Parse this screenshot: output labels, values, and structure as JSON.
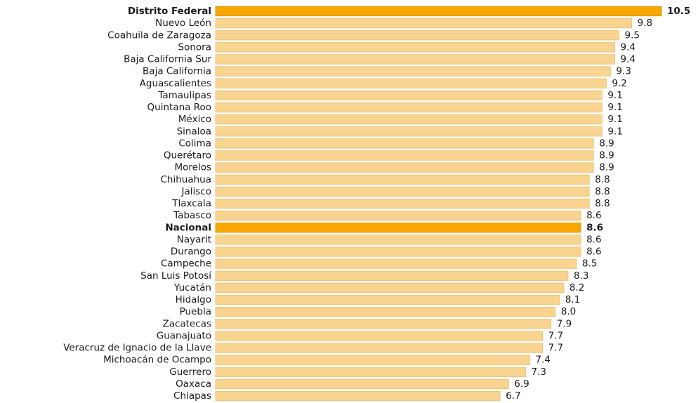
{
  "chart_data": {
    "type": "bar",
    "orientation": "horizontal",
    "categories": [
      "Distrito Federal",
      "Nuevo León",
      "Coahuila de Zaragoza",
      "Sonora",
      "Baja California Sur",
      "Baja California",
      "Aguascalientes",
      "Tamaulipas",
      "Quintana Roo",
      "México",
      "Sinaloa",
      "Colima",
      "Querétaro",
      "Morelos",
      "Chihuahua",
      "Jalisco",
      "Tlaxcala",
      "Tabasco",
      "Nacional",
      "Nayarit",
      "Durango",
      "Campeche",
      "San Luis Potosí",
      "Yucatán",
      "Hidalgo",
      "Puebla",
      "Zacatecas",
      "Guanajuato",
      "Veracruz de Ignacio de la Llave",
      "Michoacán de Ocampo",
      "Guerrero",
      "Oaxaca",
      "Chiapas"
    ],
    "values": [
      10.5,
      9.8,
      9.5,
      9.4,
      9.4,
      9.3,
      9.2,
      9.1,
      9.1,
      9.1,
      9.1,
      8.9,
      8.9,
      8.9,
      8.8,
      8.8,
      8.8,
      8.6,
      8.6,
      8.6,
      8.6,
      8.5,
      8.3,
      8.2,
      8.1,
      8.0,
      7.9,
      7.7,
      7.7,
      7.4,
      7.3,
      6.9,
      6.7
    ],
    "value_labels": [
      "10.5",
      "9.8",
      "9.5",
      "9.4",
      "9.4",
      "9.3",
      "9.2",
      "9.1",
      "9.1",
      "9.1",
      "9.1",
      "8.9",
      "8.9",
      "8.9",
      "8.8",
      "8.8",
      "8.8",
      "8.6",
      "8.6",
      "8.6",
      "8.6",
      "8.5",
      "8.3",
      "8.2",
      "8.1",
      "8.0",
      "7.9",
      "7.7",
      "7.7",
      "7.4",
      "7.3",
      "6.9",
      "6.7"
    ],
    "color": "#f9d490",
    "highlight_color": "#f7a700",
    "highlight": [
      0,
      18
    ]
  }
}
